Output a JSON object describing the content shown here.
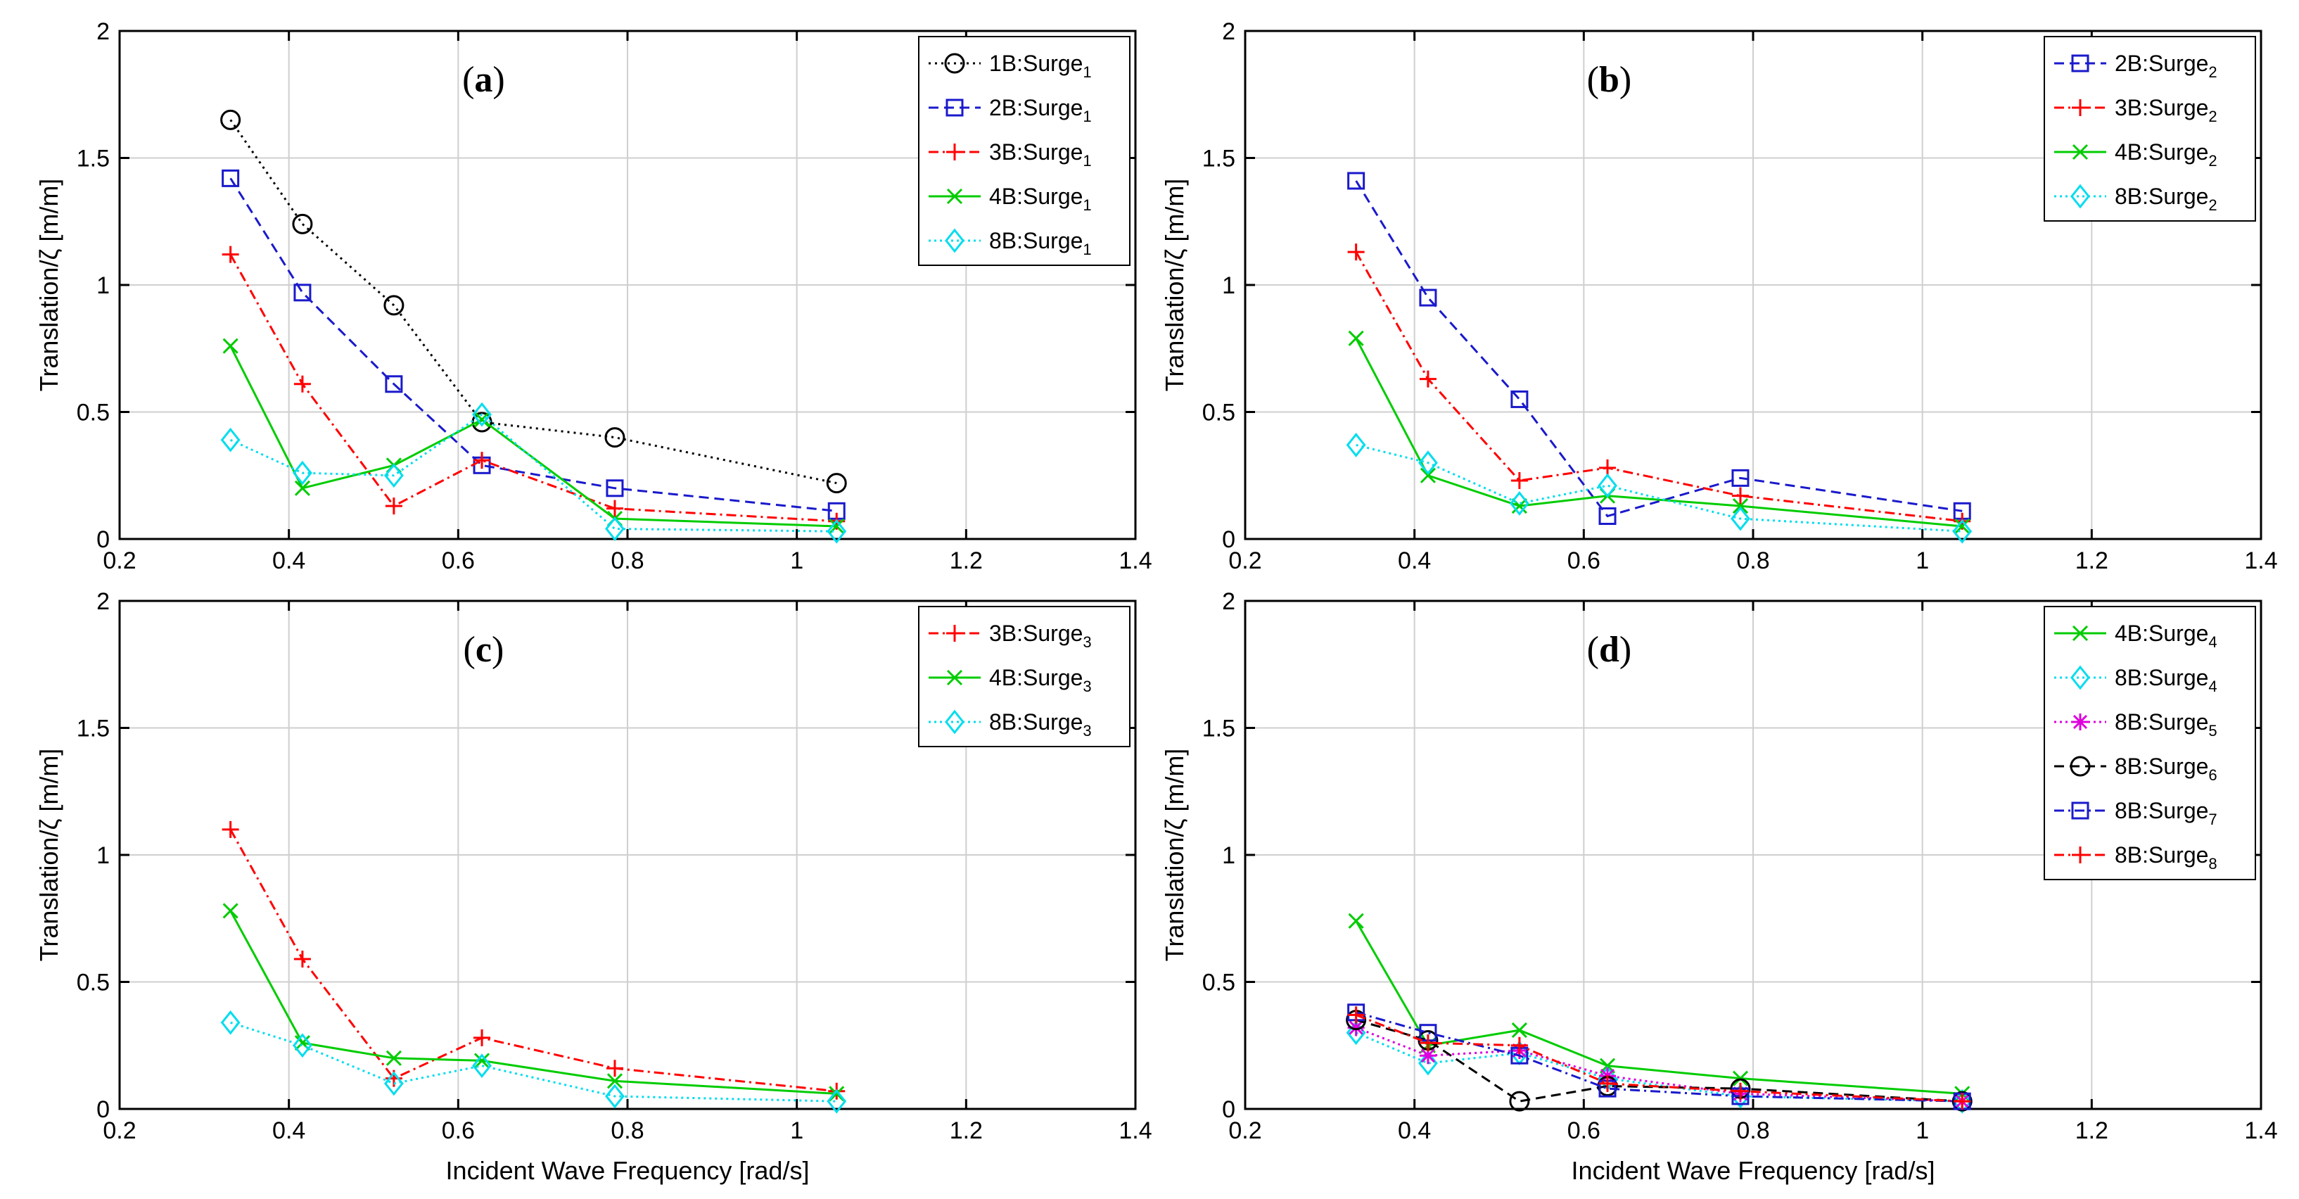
{
  "figure": {
    "xlabel": "Incident Wave Frequency [rad/s]",
    "ylabel": "Translation/ζ [m/m]"
  },
  "chart_data": [
    {
      "type": "line",
      "panel": "a",
      "title": "(a)",
      "xlim": [
        0.2,
        1.4
      ],
      "ylim": [
        0,
        2
      ],
      "xticks": [
        "0.2",
        "0.4",
        "0.6",
        "0.8",
        "1",
        "1.2",
        "1.4"
      ],
      "yticks": [
        "0",
        "0.5",
        "1",
        "1.5",
        "2"
      ],
      "ylabel": "Translation/ζ [m/m]",
      "xlabel": "",
      "grid": true,
      "legend_position": "top-right",
      "series": [
        {
          "name": "1B:Surge",
          "subscript": "1",
          "color": "#000000",
          "dash": "3,6",
          "marker": "circle",
          "x": [
            0.331,
            0.416,
            0.524,
            0.628,
            0.785,
            1.047
          ],
          "y": [
            1.65,
            1.24,
            0.92,
            0.46,
            0.4,
            0.22
          ]
        },
        {
          "name": "2B:Surge",
          "subscript": "1",
          "color": "#1a1acc",
          "dash": "14,8",
          "marker": "square",
          "x": [
            0.331,
            0.416,
            0.524,
            0.628,
            0.785,
            1.047
          ],
          "y": [
            1.42,
            0.97,
            0.61,
            0.29,
            0.2,
            0.11
          ]
        },
        {
          "name": "3B:Surge",
          "subscript": "1",
          "color": "#ff0000",
          "dash": "14,6,3,6",
          "marker": "plus",
          "x": [
            0.331,
            0.416,
            0.524,
            0.628,
            0.785,
            1.047
          ],
          "y": [
            1.12,
            0.61,
            0.13,
            0.31,
            0.12,
            0.07
          ]
        },
        {
          "name": "4B:Surge",
          "subscript": "1",
          "color": "#00cc00",
          "dash": "",
          "marker": "cross",
          "x": [
            0.331,
            0.416,
            0.524,
            0.628,
            0.785,
            1.047
          ],
          "y": [
            0.76,
            0.2,
            0.29,
            0.47,
            0.08,
            0.05
          ]
        },
        {
          "name": "8B:Surge",
          "subscript": "1",
          "color": "#00ddee",
          "dash": "3,5",
          "marker": "diamond",
          "x": [
            0.331,
            0.416,
            0.524,
            0.628,
            0.785,
            1.047
          ],
          "y": [
            0.39,
            0.26,
            0.25,
            0.49,
            0.04,
            0.03
          ]
        }
      ]
    },
    {
      "type": "line",
      "panel": "b",
      "title": "(b)",
      "xlim": [
        0.2,
        1.4
      ],
      "ylim": [
        0,
        2
      ],
      "xticks": [
        "0.2",
        "0.4",
        "0.6",
        "0.8",
        "1",
        "1.2",
        "1.4"
      ],
      "yticks": [
        "0",
        "0.5",
        "1",
        "1.5",
        "2"
      ],
      "ylabel": "Translation/ζ [m/m]",
      "xlabel": "",
      "grid": true,
      "legend_position": "top-right",
      "series": [
        {
          "name": "2B:Surge",
          "subscript": "2",
          "color": "#1a1acc",
          "dash": "14,8",
          "marker": "square",
          "x": [
            0.331,
            0.416,
            0.524,
            0.628,
            0.785,
            1.047
          ],
          "y": [
            1.41,
            0.95,
            0.55,
            0.09,
            0.24,
            0.11
          ]
        },
        {
          "name": "3B:Surge",
          "subscript": "2",
          "color": "#ff0000",
          "dash": "14,6,3,6",
          "marker": "plus",
          "x": [
            0.331,
            0.416,
            0.524,
            0.628,
            0.785,
            1.047
          ],
          "y": [
            1.13,
            0.63,
            0.23,
            0.28,
            0.17,
            0.07
          ]
        },
        {
          "name": "4B:Surge",
          "subscript": "2",
          "color": "#00cc00",
          "dash": "",
          "marker": "cross",
          "x": [
            0.331,
            0.416,
            0.524,
            0.628,
            0.785,
            1.047
          ],
          "y": [
            0.79,
            0.25,
            0.13,
            0.17,
            0.13,
            0.05
          ]
        },
        {
          "name": "8B:Surge",
          "subscript": "2",
          "color": "#00ddee",
          "dash": "3,5",
          "marker": "diamond",
          "x": [
            0.331,
            0.416,
            0.524,
            0.628,
            0.785,
            1.047
          ],
          "y": [
            0.37,
            0.3,
            0.14,
            0.21,
            0.08,
            0.03
          ]
        }
      ]
    },
    {
      "type": "line",
      "panel": "c",
      "title": "(c)",
      "xlim": [
        0.2,
        1.4
      ],
      "ylim": [
        0,
        2
      ],
      "xticks": [
        "0.2",
        "0.4",
        "0.6",
        "0.8",
        "1",
        "1.2",
        "1.4"
      ],
      "yticks": [
        "0",
        "0.5",
        "1",
        "1.5",
        "2"
      ],
      "ylabel": "Translation/ζ [m/m]",
      "xlabel": "Incident Wave Frequency [rad/s]",
      "grid": true,
      "legend_position": "top-right",
      "series": [
        {
          "name": "3B:Surge",
          "subscript": "3",
          "color": "#ff0000",
          "dash": "14,6,3,6",
          "marker": "plus",
          "x": [
            0.331,
            0.416,
            0.524,
            0.628,
            0.785,
            1.047
          ],
          "y": [
            1.1,
            0.59,
            0.12,
            0.28,
            0.16,
            0.07
          ]
        },
        {
          "name": "4B:Surge",
          "subscript": "3",
          "color": "#00cc00",
          "dash": "",
          "marker": "cross",
          "x": [
            0.331,
            0.416,
            0.524,
            0.628,
            0.785,
            1.047
          ],
          "y": [
            0.78,
            0.26,
            0.2,
            0.19,
            0.11,
            0.06
          ]
        },
        {
          "name": "8B:Surge",
          "subscript": "3",
          "color": "#00ddee",
          "dash": "3,5",
          "marker": "diamond",
          "x": [
            0.331,
            0.416,
            0.524,
            0.628,
            0.785,
            1.047
          ],
          "y": [
            0.34,
            0.25,
            0.1,
            0.17,
            0.05,
            0.03
          ]
        }
      ]
    },
    {
      "type": "line",
      "panel": "d",
      "title": "(d)",
      "xlim": [
        0.2,
        1.4
      ],
      "ylim": [
        0,
        2
      ],
      "xticks": [
        "0.2",
        "0.4",
        "0.6",
        "0.8",
        "1",
        "1.2",
        "1.4"
      ],
      "yticks": [
        "0",
        "0.5",
        "1",
        "1.5",
        "2"
      ],
      "ylabel": "Translation/ζ [m/m]",
      "xlabel": "Incident Wave Frequency [rad/s]",
      "grid": true,
      "legend_position": "top-right",
      "series": [
        {
          "name": "4B:Surge",
          "subscript": "4",
          "color": "#00cc00",
          "dash": "",
          "marker": "cross",
          "x": [
            0.331,
            0.416,
            0.524,
            0.628,
            0.785,
            1.047
          ],
          "y": [
            0.74,
            0.25,
            0.31,
            0.17,
            0.12,
            0.06
          ]
        },
        {
          "name": "8B:Surge",
          "subscript": "4",
          "color": "#00ddee",
          "dash": "3,5",
          "marker": "diamond",
          "x": [
            0.331,
            0.416,
            0.524,
            0.628,
            0.785,
            1.047
          ],
          "y": [
            0.3,
            0.18,
            0.22,
            0.12,
            0.05,
            0.03
          ]
        },
        {
          "name": "8B:Surge",
          "subscript": "5",
          "color": "#dd00dd",
          "dash": "3,5",
          "marker": "asterisk",
          "x": [
            0.331,
            0.416,
            0.524,
            0.628,
            0.785,
            1.047
          ],
          "y": [
            0.32,
            0.21,
            0.23,
            0.13,
            0.06,
            0.03
          ]
        },
        {
          "name": "8B:Surge",
          "subscript": "6",
          "color": "#000000",
          "dash": "14,8",
          "marker": "circle",
          "x": [
            0.331,
            0.416,
            0.524,
            0.628,
            0.785,
            1.047
          ],
          "y": [
            0.35,
            0.27,
            0.03,
            0.09,
            0.08,
            0.03
          ]
        },
        {
          "name": "8B:Surge",
          "subscript": "7",
          "color": "#1a1acc",
          "dash": "14,6,3,6",
          "marker": "square",
          "x": [
            0.331,
            0.416,
            0.524,
            0.628,
            0.785,
            1.047
          ],
          "y": [
            0.38,
            0.3,
            0.21,
            0.08,
            0.05,
            0.03
          ]
        },
        {
          "name": "8B:Surge",
          "subscript": "8",
          "color": "#ff0000",
          "dash": "14,6,3,6",
          "marker": "plus",
          "x": [
            0.331,
            0.416,
            0.524,
            0.628,
            0.785,
            1.047
          ],
          "y": [
            0.37,
            0.26,
            0.25,
            0.1,
            0.07,
            0.03
          ]
        }
      ]
    }
  ]
}
